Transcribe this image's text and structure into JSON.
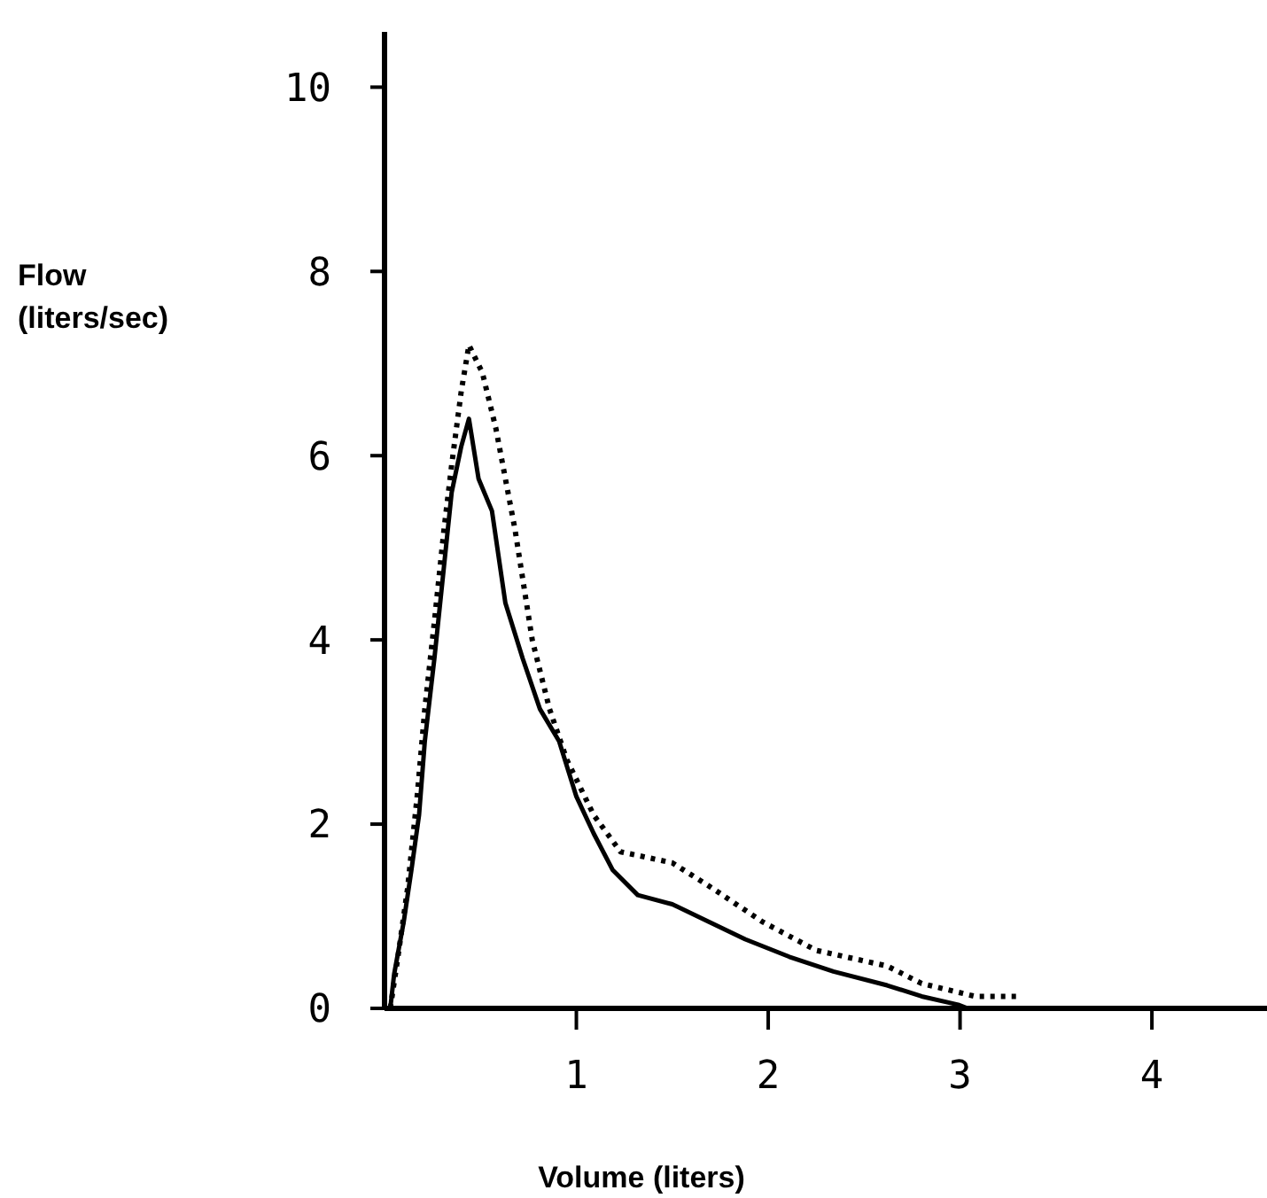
{
  "chart_data": {
    "type": "line",
    "xlabel": "Volume (liters)",
    "ylabel": "Flow\n(liters/sec)",
    "xlim": [
      0,
      4.6
    ],
    "ylim": [
      0,
      10.6
    ],
    "xticks": [
      1,
      2,
      3,
      4
    ],
    "yticks": [
      0,
      2,
      4,
      6,
      8,
      10
    ],
    "grid": false,
    "marker": "none",
    "series": [
      {
        "color": "#000000",
        "line_style": "solid",
        "x": [
          0.03,
          0.05,
          0.1,
          0.14,
          0.18,
          0.21,
          0.26,
          0.31,
          0.35,
          0.4,
          0.44,
          0.49,
          0.56,
          0.63,
          0.72,
          0.81,
          0.91,
          1.0,
          1.09,
          1.19,
          1.32,
          1.5,
          1.69,
          1.88,
          2.11,
          2.34,
          2.62,
          2.8,
          2.99,
          3.04
        ],
        "values": [
          0,
          0.37,
          0.94,
          1.5,
          2.1,
          2.9,
          3.8,
          4.8,
          5.6,
          6.1,
          6.4,
          5.75,
          5.4,
          4.4,
          3.8,
          3.25,
          2.9,
          2.3,
          1.9,
          1.5,
          1.23,
          1.13,
          0.94,
          0.75,
          0.56,
          0.4,
          0.25,
          0.13,
          0.04,
          0
        ]
      },
      {
        "color": "#000000",
        "line_style": "dotted",
        "x": [
          0.03,
          0.07,
          0.12,
          0.17,
          0.21,
          0.26,
          0.31,
          0.35,
          0.4,
          0.44,
          0.51,
          0.58,
          0.68,
          0.77,
          0.86,
          0.95,
          1.09,
          1.23,
          1.5,
          1.69,
          1.97,
          2.25,
          2.62,
          2.8,
          3.08,
          3.32
        ],
        "values": [
          0,
          0.56,
          1.3,
          2.3,
          3.25,
          4.2,
          5.2,
          5.9,
          6.7,
          7.2,
          6.9,
          6.3,
          5.2,
          4.0,
          3.25,
          2.7,
          2.1,
          1.7,
          1.58,
          1.33,
          0.94,
          0.63,
          0.46,
          0.27,
          0.13,
          0.13
        ]
      }
    ]
  }
}
